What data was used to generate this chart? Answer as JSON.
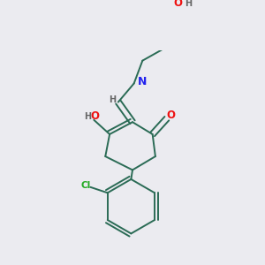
{
  "bg_color": "#ebebf0",
  "bond_color": "#2a6b55",
  "atom_colors": {
    "O": "#ee1111",
    "N": "#2222ee",
    "Cl": "#22aa22",
    "H": "#666666",
    "C": "#2a6b55"
  },
  "fig_w": 3.0,
  "fig_h": 3.0,
  "dpi": 100
}
